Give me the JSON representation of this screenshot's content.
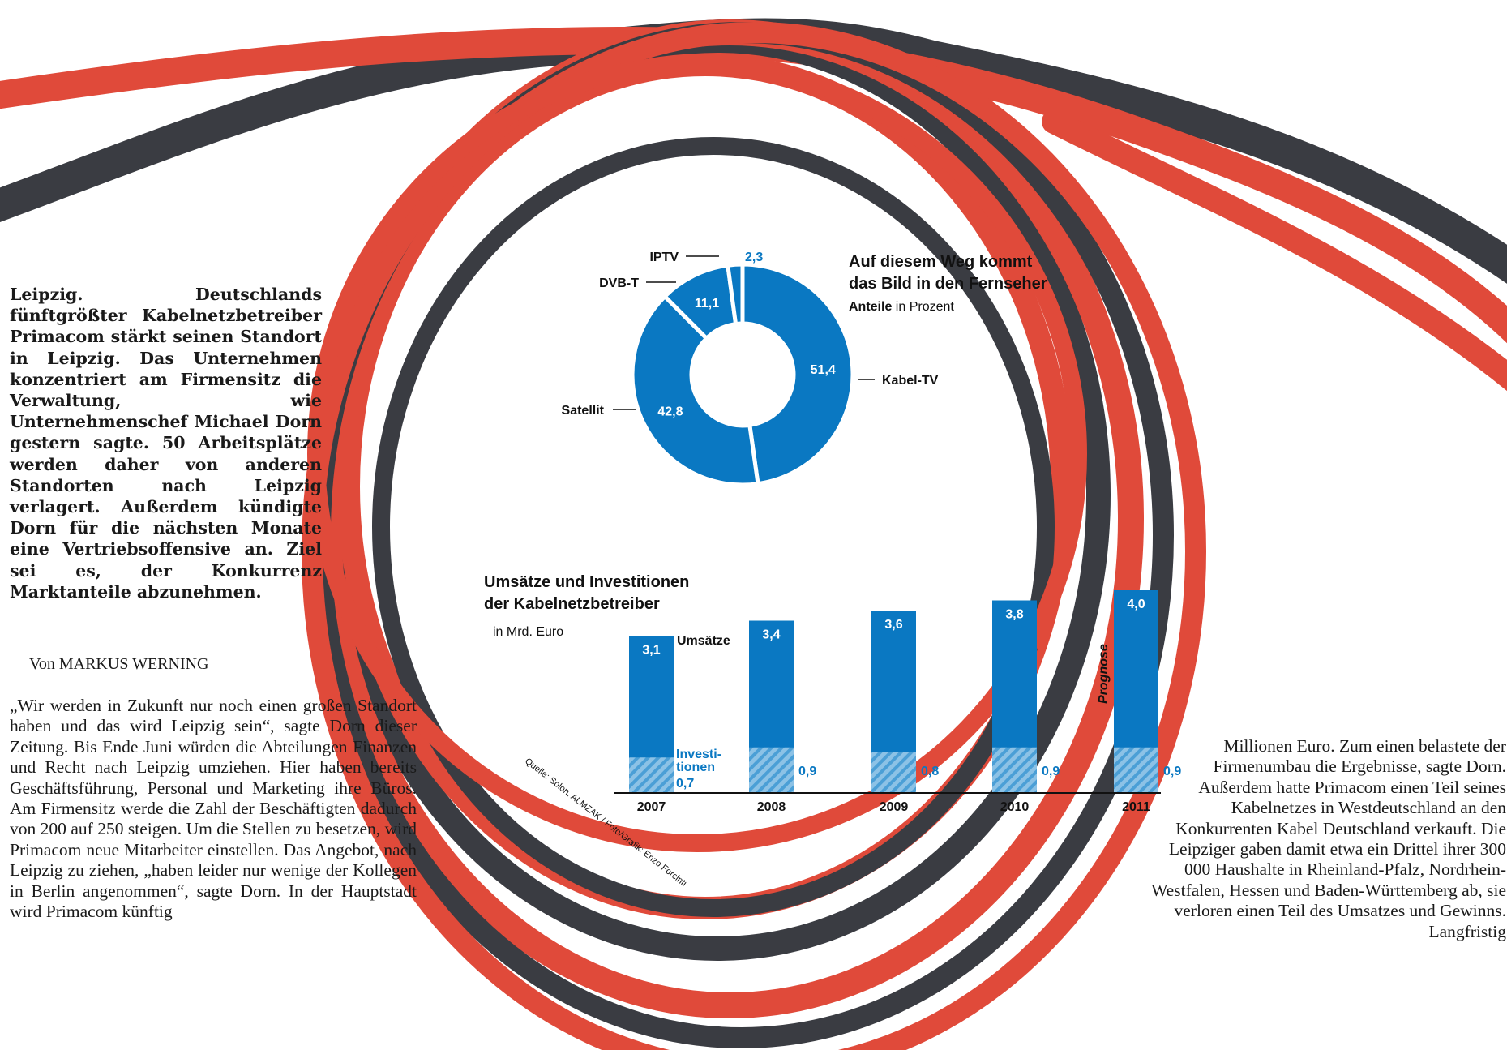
{
  "article": {
    "lead": "Leipzig. Deutschlands fünftgrößter Kabelnetzbetreiber Primacom stärkt seinen Standort in Leipzig. Das Unternehmen konzentriert am Firmensitz die Verwaltung, wie Unternehmenschef Michael Dorn gestern sagte. 50 Arbeitsplätze werden daher von anderen Standorten nach Leipzig verlagert. Außerdem kündigte Dorn für die nächsten Monate eine Vertriebsoffensive an. Ziel sei es, der Konkurrenz Marktanteile abzunehmen.",
    "byline": "Von MARKUS WERNING",
    "body_left": "„Wir werden in Zukunft nur noch einen großen Standort haben und das wird Leipzig sein“, sagte Dorn dieser Zeitung. Bis Ende Juni würden die Abteilungen Finanzen und Recht nach Leipzig umziehen. Hier haben bereits Geschäftsführung, Personal und Marketing ihre Büros. Am Firmensitz werde die Zahl der Beschäftigten dadurch von 200 auf 250 steigen. Um die Stellen zu besetzen, wird Primacom neue Mitarbeiter einstellen. Das Angebot, nach Leipzig zu ziehen, „haben leider nur wenige der Kollegen in Berlin angenommen“, sagte Dorn. In der Hauptstadt wird Primacom künftig",
    "body_right": "Millionen Euro. Zum einen belastete der Firmenumbau die Ergebnisse, sagte Dorn. Außerdem hatte Primacom einen Teil seines Kabelnetzes in Westdeutschland an den Konkurrenten Kabel Deutschland verkauft. Die Leipziger gaben damit etwa ein Drittel ihrer 300 000 Haushalte in Rheinland-Pfalz, Nordrhein-Westfalen, Hessen und Baden-Württemberg ab, sie verloren einen Teil des Umsatzes und Gewinns. Langfristig"
  },
  "colors": {
    "blue": "#0a78c2",
    "hatch": "#5aa9dc",
    "cable_red": "#e04a3a",
    "cable_dark": "#3a3c42"
  },
  "chart_data": [
    {
      "type": "pie",
      "title_line1": "Auf diesem Weg kommt",
      "title_line2": "das Bild in den Fernseher",
      "subtitle_bold": "Anteile",
      "subtitle_rest": " in Prozent",
      "slices": [
        {
          "label": "Kabel-TV",
          "value": 51.4,
          "value_label": "51,4"
        },
        {
          "label": "Satellit",
          "value": 42.8,
          "value_label": "42,8"
        },
        {
          "label": "DVB-T",
          "value": 11.1,
          "value_label": "11,1"
        },
        {
          "label": "IPTV",
          "value": 2.3,
          "value_label": "2,3"
        }
      ]
    },
    {
      "type": "bar",
      "title_line1": "Umsätze und Investitionen",
      "title_line2": "der Kabelnetzbetreiber",
      "unit": "in Mrd. Euro",
      "categories": [
        "2007",
        "2008",
        "2009",
        "2010",
        "2011"
      ],
      "series": [
        {
          "name": "Umsätze",
          "values": [
            3.1,
            3.4,
            3.6,
            3.8,
            4.0
          ],
          "labels": [
            "3,1",
            "3,4",
            "3,6",
            "3,8",
            "4,0"
          ]
        },
        {
          "name": "Investitionen",
          "values": [
            0.7,
            0.9,
            0.8,
            0.9,
            0.9
          ],
          "labels": [
            "0,7",
            "0,9",
            "0,8",
            "0,9",
            "0,9"
          ]
        }
      ],
      "legend_umsaetze": "Umsätze",
      "legend_invest_1": "Investi-",
      "legend_invest_2": "tionen",
      "prognose": "Prognose",
      "source": "Quelle: Solon, ALMZAK / Foto/Grafik: Enzo Forcinti",
      "ylim": [
        0,
        4.0
      ]
    }
  ]
}
